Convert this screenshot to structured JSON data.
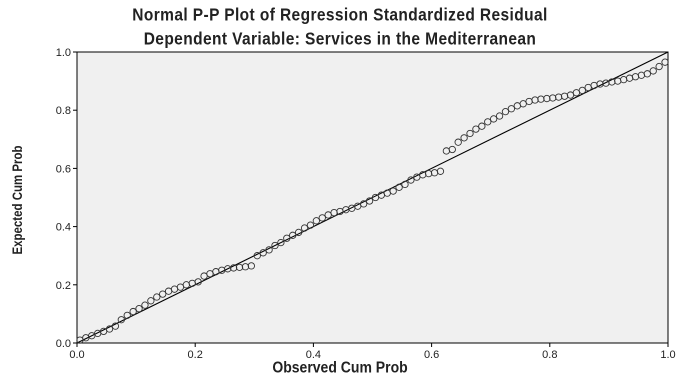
{
  "title_line1": "Normal P-P Plot of Regression Standardized Residual",
  "title_line2": "Dependent Variable: Services in the Mediterranean",
  "chart_data": {
    "type": "scatter",
    "title": "Normal P-P Plot of Regression Standardized Residual",
    "subtitle": "Dependent Variable: Services in the Mediterranean",
    "xlabel": "Observed Cum Prob",
    "ylabel": "Expected Cum Prob",
    "xlim": [
      0,
      1
    ],
    "ylim": [
      0,
      1
    ],
    "xticks": [
      "0.0",
      "0.2",
      "0.4",
      "0.6",
      "0.8",
      "1.0"
    ],
    "yticks": [
      "0.0",
      "0.2",
      "0.4",
      "0.6",
      "0.8",
      "1.0"
    ],
    "reference_line": [
      [
        0,
        0
      ],
      [
        1,
        1
      ]
    ],
    "plot_background": "#f0f0f0",
    "marker": "open-circle",
    "series": [
      {
        "x": [
          0.005,
          0.015,
          0.025,
          0.035,
          0.045,
          0.055,
          0.065,
          0.075,
          0.085,
          0.095,
          0.105,
          0.115,
          0.125,
          0.135,
          0.145,
          0.155,
          0.165,
          0.175,
          0.185,
          0.195,
          0.205,
          0.215,
          0.225,
          0.235,
          0.245,
          0.255,
          0.265,
          0.275,
          0.285,
          0.295,
          0.305,
          0.315,
          0.325,
          0.335,
          0.345,
          0.355,
          0.365,
          0.375,
          0.385,
          0.395,
          0.405,
          0.415,
          0.425,
          0.435,
          0.445,
          0.455,
          0.465,
          0.475,
          0.485,
          0.495,
          0.505,
          0.515,
          0.525,
          0.535,
          0.545,
          0.555,
          0.565,
          0.575,
          0.585,
          0.595,
          0.605,
          0.615,
          0.625,
          0.635,
          0.645,
          0.655,
          0.665,
          0.675,
          0.685,
          0.695,
          0.705,
          0.715,
          0.725,
          0.735,
          0.745,
          0.755,
          0.765,
          0.775,
          0.785,
          0.795,
          0.805,
          0.815,
          0.825,
          0.835,
          0.845,
          0.855,
          0.865,
          0.875,
          0.885,
          0.895,
          0.905,
          0.915,
          0.925,
          0.935,
          0.945,
          0.955,
          0.965,
          0.975,
          0.985,
          0.995
        ],
        "y": [
          0.01,
          0.018,
          0.025,
          0.033,
          0.04,
          0.048,
          0.058,
          0.08,
          0.095,
          0.108,
          0.118,
          0.13,
          0.145,
          0.158,
          0.168,
          0.178,
          0.185,
          0.192,
          0.2,
          0.205,
          0.21,
          0.23,
          0.238,
          0.245,
          0.25,
          0.255,
          0.258,
          0.26,
          0.262,
          0.265,
          0.3,
          0.31,
          0.32,
          0.335,
          0.345,
          0.36,
          0.37,
          0.38,
          0.395,
          0.405,
          0.42,
          0.43,
          0.44,
          0.448,
          0.452,
          0.458,
          0.463,
          0.47,
          0.478,
          0.488,
          0.5,
          0.508,
          0.515,
          0.522,
          0.535,
          0.545,
          0.56,
          0.57,
          0.578,
          0.582,
          0.585,
          0.59,
          0.66,
          0.665,
          0.69,
          0.705,
          0.72,
          0.735,
          0.745,
          0.76,
          0.77,
          0.78,
          0.795,
          0.805,
          0.815,
          0.822,
          0.83,
          0.835,
          0.838,
          0.84,
          0.842,
          0.845,
          0.848,
          0.852,
          0.86,
          0.868,
          0.878,
          0.885,
          0.89,
          0.893,
          0.897,
          0.9,
          0.905,
          0.91,
          0.915,
          0.92,
          0.925,
          0.935,
          0.95,
          0.965
        ]
      }
    ]
  }
}
